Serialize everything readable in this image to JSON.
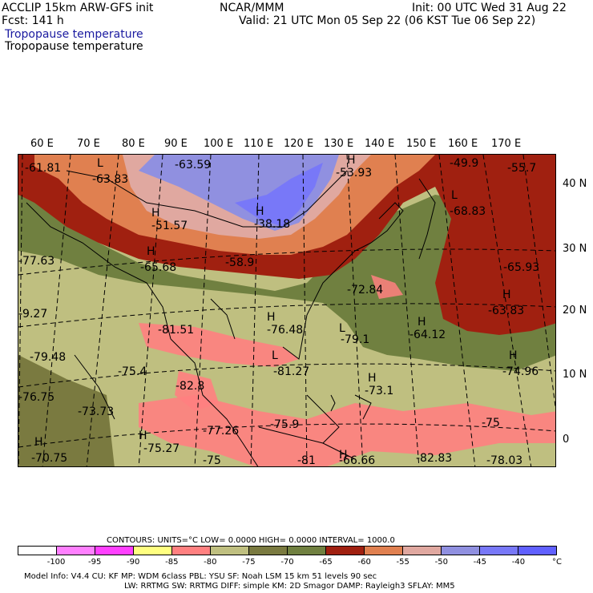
{
  "header": {
    "model_line": "ACCLIP 15km ARW-GFS init",
    "fcst_line": "Fcst:  141 h",
    "org": "NCAR/MMM",
    "init": "Init: 00 UTC Wed 31 Aug 22",
    "valid": "Valid: 21 UTC Mon 05 Sep 22 (06 KST Tue 06 Sep 22)",
    "field1": "Tropopause temperature",
    "field2": "Tropopause temperature"
  },
  "map": {
    "lon_labels": [
      "60 E",
      "70 E",
      "80 E",
      "90 E",
      "100 E",
      "110 E",
      "120 E",
      "130 E",
      "140 E",
      "150 E",
      "160 E",
      "170 E"
    ],
    "lat_labels": [
      "40 N",
      "30 N",
      "20 N",
      "10 N",
      "0"
    ],
    "labels": [
      {
        "text": "-61.81"
      },
      {
        "text": "L"
      },
      {
        "text": "-63.83"
      },
      {
        "text": "-63.59"
      },
      {
        "text": "H"
      },
      {
        "text": "-53.93"
      },
      {
        "text": "-49.9"
      },
      {
        "text": "-55.7"
      },
      {
        "text": "H"
      },
      {
        "text": "-51.57"
      },
      {
        "text": "H"
      },
      {
        "text": "-38.18"
      },
      {
        "text": "L"
      },
      {
        "text": "-68.83"
      },
      {
        "text": "-77.63"
      },
      {
        "text": "H"
      },
      {
        "text": "-65.68"
      },
      {
        "text": "-58.9"
      },
      {
        "text": "-65.93"
      },
      {
        "text": "-72.84"
      },
      {
        "text": "H"
      },
      {
        "text": "-63.83"
      },
      {
        "text": "-9.27"
      },
      {
        "text": "-81.51"
      },
      {
        "text": "H"
      },
      {
        "text": "-76.48"
      },
      {
        "text": "H"
      },
      {
        "text": "-64.12"
      },
      {
        "text": "L"
      },
      {
        "text": "-79.1"
      },
      {
        "text": "-79.48"
      },
      {
        "text": "-75.4"
      },
      {
        "text": "L"
      },
      {
        "text": "-81.27"
      },
      {
        "text": "H"
      },
      {
        "text": "-74.96"
      },
      {
        "text": "-82.8"
      },
      {
        "text": "H"
      },
      {
        "text": "-73.1"
      },
      {
        "text": "-76.75"
      },
      {
        "text": "-73.73"
      },
      {
        "text": "-77.26"
      },
      {
        "text": "-75.9"
      },
      {
        "text": "-75"
      },
      {
        "text": "H"
      },
      {
        "text": "-75.27"
      },
      {
        "text": "H"
      },
      {
        "text": "-70.75"
      },
      {
        "text": "-75"
      },
      {
        "text": "-81"
      },
      {
        "text": "H"
      },
      {
        "text": "-66.66"
      },
      {
        "text": "-82.83"
      },
      {
        "text": "-78.03"
      }
    ]
  },
  "legend": {
    "contours_line": "CONTOURS:  UNITS=°C  LOW=  0.0000        HIGH=  0.0000        INTERVAL=  1000.0",
    "ticks": [
      "-100",
      "-95",
      "-90",
      "-85",
      "-80",
      "-75",
      "-70",
      "-65",
      "-60",
      "-55",
      "-50",
      "-45",
      "-40",
      "°C"
    ],
    "colors": [
      "#ffffff",
      "#ff80ff",
      "#ff40ff",
      "#ffff80",
      "#ff8080",
      "#bfbf80",
      "#7a7a40",
      "#708040",
      "#a02010",
      "#e08050",
      "#e0a8a0",
      "#9090e0",
      "#7878f8",
      "#6060ff"
    ]
  },
  "footer": {
    "line1": "Model Info: V4.4       CU: KF       MP: WDM 6class   PBL: YSU        SF: Noah LSM     15 km    51 levels    90 sec",
    "line2": "LW: RRTMG    SW: RRTMG   DIFF: simple KM: 2D Smagor DAMP: Rayleigh3  SFLAY: MM5"
  }
}
